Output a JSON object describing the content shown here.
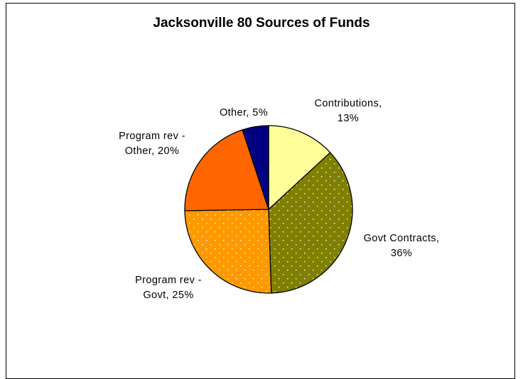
{
  "chart_data": {
    "type": "pie",
    "title": "Jacksonville 80 Sources of Funds",
    "slices": [
      {
        "label": "Contributions",
        "value": 13,
        "display": "13%",
        "color": "#FFFF99",
        "pattern": "none",
        "label_lines": [
          "Contributions,",
          "13%"
        ]
      },
      {
        "label": "Govt Contracts",
        "value": 36,
        "display": "36%",
        "color": "#808000",
        "pattern": "dots",
        "label_lines": [
          "Govt Contracts,",
          "36%"
        ]
      },
      {
        "label": "Program rev - Govt",
        "value": 25,
        "display": "25%",
        "color": "#FF9900",
        "pattern": "dots",
        "label_lines": [
          "Program rev -",
          "Govt, 25%"
        ]
      },
      {
        "label": "Program rev - Other",
        "value": 20,
        "display": "20%",
        "color": "#FF6600",
        "pattern": "none",
        "label_lines": [
          "Program rev -",
          "Other, 20%"
        ]
      },
      {
        "label": "Other",
        "value": 5,
        "display": "5%",
        "color": "#000080",
        "pattern": "none",
        "label_lines": [
          "Other, 5%"
        ]
      }
    ],
    "start_angle": "12 o'clock",
    "direction": "clockwise",
    "legend": "none",
    "data_labels": "outside, category name and percent"
  }
}
